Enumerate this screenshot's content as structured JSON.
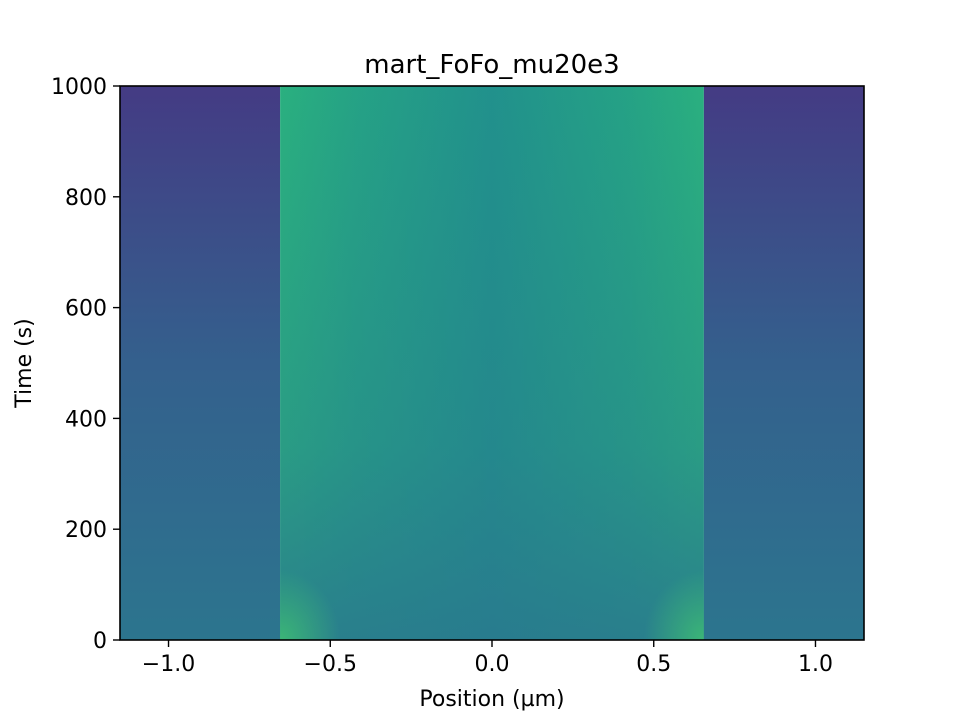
{
  "chart_data": {
    "type": "heatmap",
    "title": "mart_FoFo_mu20e3",
    "xlabel": "Position (µm)",
    "ylabel": "Time (s)",
    "xlim": [
      -1.15,
      1.15
    ],
    "ylim": [
      0,
      1000
    ],
    "xticks": [
      -1.0,
      -0.5,
      0.0,
      0.5,
      1.0
    ],
    "xtick_labels": [
      "−1.0",
      "−0.5",
      "0.0",
      "0.5",
      "1.0"
    ],
    "yticks": [
      0,
      200,
      400,
      600,
      800,
      1000
    ],
    "ytick_labels": [
      "0",
      "200",
      "400",
      "600",
      "800",
      "1000"
    ],
    "colormap": "viridis",
    "regions": [
      {
        "name": "outer-left",
        "x_range": [
          -1.15,
          -0.655
        ],
        "color_bottom": "#2c758e",
        "color_top": "#443b84"
      },
      {
        "name": "inner",
        "x_range": [
          -0.655,
          0.655
        ],
        "edge_color": "#2ab07f",
        "center_bottom": "#2a7f8e",
        "center_top": "#21918c"
      },
      {
        "name": "outer-right",
        "x_range": [
          0.655,
          1.15
        ],
        "color_bottom": "#2c758e",
        "color_top": "#443b84"
      }
    ],
    "grid": false
  }
}
